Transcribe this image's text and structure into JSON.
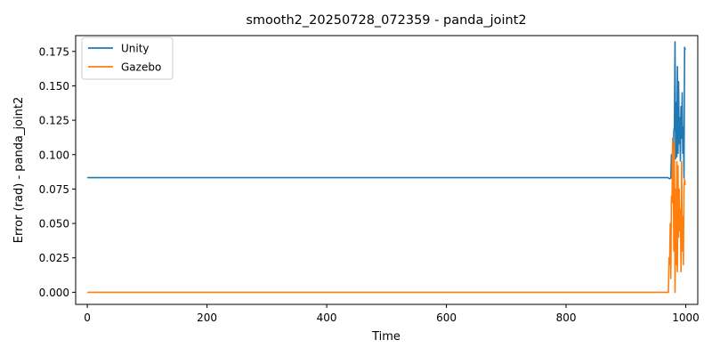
{
  "chart_data": {
    "type": "line",
    "title": "smooth2_20250728_072359 - panda_joint2",
    "xlabel": "Time",
    "ylabel": "Error (rad) - panda_joint2",
    "xlim": [
      -19.5,
      1020
    ],
    "ylim": [
      -0.0088,
      0.1865
    ],
    "x_ticks": [
      0,
      200,
      400,
      600,
      800,
      1000
    ],
    "y_ticks": [
      0.0,
      0.025,
      0.05,
      0.075,
      0.1,
      0.125,
      0.15,
      0.175
    ],
    "y_tick_labels": [
      "0.000",
      "0.025",
      "0.050",
      "0.075",
      "0.100",
      "0.125",
      "0.150",
      "0.175"
    ],
    "x_tick_labels": [
      "0",
      "200",
      "400",
      "600",
      "800",
      "1000"
    ],
    "grid": false,
    "legend_position": "upper-left",
    "series": [
      {
        "name": "Unity",
        "color": "#1f77b4",
        "points": [
          [
            0,
            0.0833
          ],
          [
            100,
            0.0833
          ],
          [
            200,
            0.0833
          ],
          [
            300,
            0.0833
          ],
          [
            400,
            0.0833
          ],
          [
            500,
            0.0833
          ],
          [
            600,
            0.0833
          ],
          [
            700,
            0.0833
          ],
          [
            800,
            0.0833
          ],
          [
            900,
            0.0833
          ],
          [
            970,
            0.0833
          ],
          [
            973,
            0.0825
          ],
          [
            975,
            0.083
          ],
          [
            976,
            0.1
          ],
          [
            977,
            0.0865
          ],
          [
            978,
            0.104
          ],
          [
            979,
            0.0965
          ],
          [
            980,
            0.117
          ],
          [
            981,
            0.12
          ],
          [
            982,
            0.182
          ],
          [
            983,
            0.097
          ],
          [
            984,
            0.138
          ],
          [
            985,
            0.0985
          ],
          [
            986,
            0.164
          ],
          [
            987,
            0.101
          ],
          [
            988,
            0.153
          ],
          [
            989,
            0.108
          ],
          [
            990,
            0.127
          ],
          [
            991,
            0.0955
          ],
          [
            992,
            0.135
          ],
          [
            993,
            0.112
          ],
          [
            994,
            0.145
          ],
          [
            995,
            0.101
          ],
          [
            996,
            0.12
          ],
          [
            997,
            0.083
          ],
          [
            998,
            0.178
          ],
          [
            999,
            0.176
          ]
        ]
      },
      {
        "name": "Gazebo",
        "color": "#ff7f0e",
        "points": [
          [
            0,
            0.0
          ],
          [
            100,
            0.0
          ],
          [
            200,
            0.0
          ],
          [
            300,
            0.0
          ],
          [
            400,
            0.0
          ],
          [
            500,
            0.0
          ],
          [
            600,
            0.0
          ],
          [
            700,
            0.0
          ],
          [
            800,
            0.0
          ],
          [
            900,
            0.0
          ],
          [
            971,
            0.0
          ],
          [
            972,
            0.025
          ],
          [
            973,
            0.02
          ],
          [
            974,
            0.05
          ],
          [
            975,
            0.01
          ],
          [
            976,
            0.07
          ],
          [
            977,
            0.065
          ],
          [
            978,
            0.112
          ],
          [
            979,
            0.09
          ],
          [
            980,
            0.03
          ],
          [
            981,
            0.108
          ],
          [
            982,
            0.0
          ],
          [
            983,
            0.075
          ],
          [
            984,
            0.02
          ],
          [
            985,
            0.095
          ],
          [
            986,
            0.015
          ],
          [
            987,
            0.092
          ],
          [
            988,
            0.04
          ],
          [
            989,
            0.075
          ],
          [
            990,
            0.045
          ],
          [
            991,
            0.06
          ],
          [
            992,
            0.015
          ],
          [
            993,
            0.095
          ],
          [
            994,
            0.03
          ],
          [
            995,
            0.055
          ],
          [
            996,
            0.02
          ],
          [
            997,
            0.077
          ],
          [
            998,
            0.082
          ],
          [
            999,
            0.078
          ]
        ]
      }
    ]
  }
}
